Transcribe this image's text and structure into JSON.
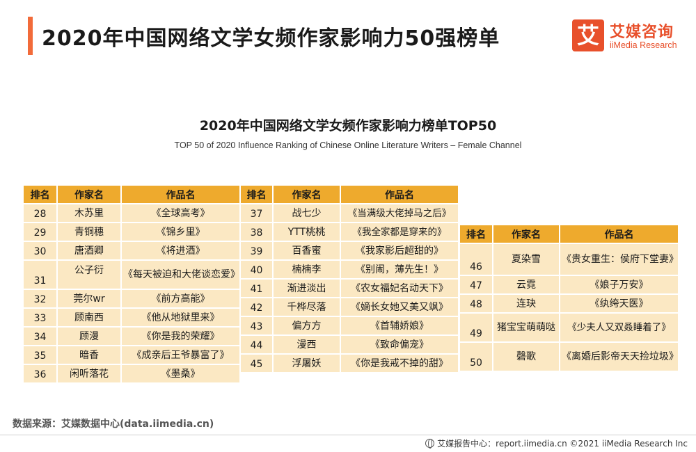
{
  "page": {
    "title": "2020年中国网络文学女频作家影响力50强榜单",
    "accent_color": "#f26b3a"
  },
  "logo": {
    "mark": "艾",
    "name_cn": "艾媒咨询",
    "name_en": "iiMedia Research",
    "color": "#e8502b"
  },
  "chart": {
    "title": "2020年中国网络文学女频作家影响力榜单TOP50",
    "subtitle": "TOP 50 of 2020 Influence Ranking of Chinese Online Literature Writers – Female Channel"
  },
  "table_headers": {
    "rank": "排名",
    "writer": "作家名",
    "work": "作品名"
  },
  "header_color": "#eeaa2d",
  "cell_color": "#fbe8c3",
  "tables": [
    {
      "rows": [
        {
          "rank": "28",
          "writer": "木苏里",
          "work": "《全球高考》"
        },
        {
          "rank": "29",
          "writer": "青铜穗",
          "work": "《锦乡里》"
        },
        {
          "rank": "30",
          "writer": "唐酒卿",
          "work": "《将进酒》"
        },
        {
          "rank": "31",
          "writer": "公子衍",
          "work": "《每天被迫和大佬谈恋爱》"
        },
        {
          "rank": "32",
          "writer": "莞尔wr",
          "work": "《前方高能》"
        },
        {
          "rank": "33",
          "writer": "顾南西",
          "work": "《他从地狱里来》"
        },
        {
          "rank": "34",
          "writer": "顾漫",
          "work": "《你是我的荣耀》"
        },
        {
          "rank": "35",
          "writer": "暗香",
          "work": "《成亲后王爷暴富了》"
        },
        {
          "rank": "36",
          "writer": "闲听落花",
          "work": "《墨桑》"
        }
      ]
    },
    {
      "rows": [
        {
          "rank": "37",
          "writer": "战七少",
          "work": "《当满级大佬掉马之后》"
        },
        {
          "rank": "38",
          "writer": "YTT桃桃",
          "work": "《我全家都是穿来的》"
        },
        {
          "rank": "39",
          "writer": "百香蜜",
          "work": "《我家影后超甜的》"
        },
        {
          "rank": "40",
          "writer": "楠楠李",
          "work": "《别闹，薄先生！》"
        },
        {
          "rank": "41",
          "writer": "渐进淡出",
          "work": "《农女福妃名动天下》"
        },
        {
          "rank": "42",
          "writer": "千桦尽落",
          "work": "《嫡长女她又美又飒》"
        },
        {
          "rank": "43",
          "writer": "偏方方",
          "work": "《首辅娇娘》"
        },
        {
          "rank": "44",
          "writer": "漫西",
          "work": "《致命偏宠》"
        },
        {
          "rank": "45",
          "writer": "浮屠妖",
          "work": "《你是我戒不掉的甜》"
        }
      ]
    },
    {
      "rows": [
        {
          "rank": "46",
          "writer": "夏染雪",
          "work": "《贵女重生：侯府下堂妻》"
        },
        {
          "rank": "47",
          "writer": "云霓",
          "work": "《娘子万安》"
        },
        {
          "rank": "48",
          "writer": "连玦",
          "work": "《纨绔天医》"
        },
        {
          "rank": "49",
          "writer": "猪宝宝萌萌哒",
          "work": "《少夫人又双叒睡着了》"
        },
        {
          "rank": "50",
          "writer": "磬歌",
          "work": "《离婚后影帝天天捡垃圾》"
        }
      ]
    }
  ],
  "source": "数据来源：艾媒数据中心(data.iimedia.cn)",
  "footer": "艾媒报告中心：report.iimedia.cn   ©2021  iiMedia Research  Inc"
}
